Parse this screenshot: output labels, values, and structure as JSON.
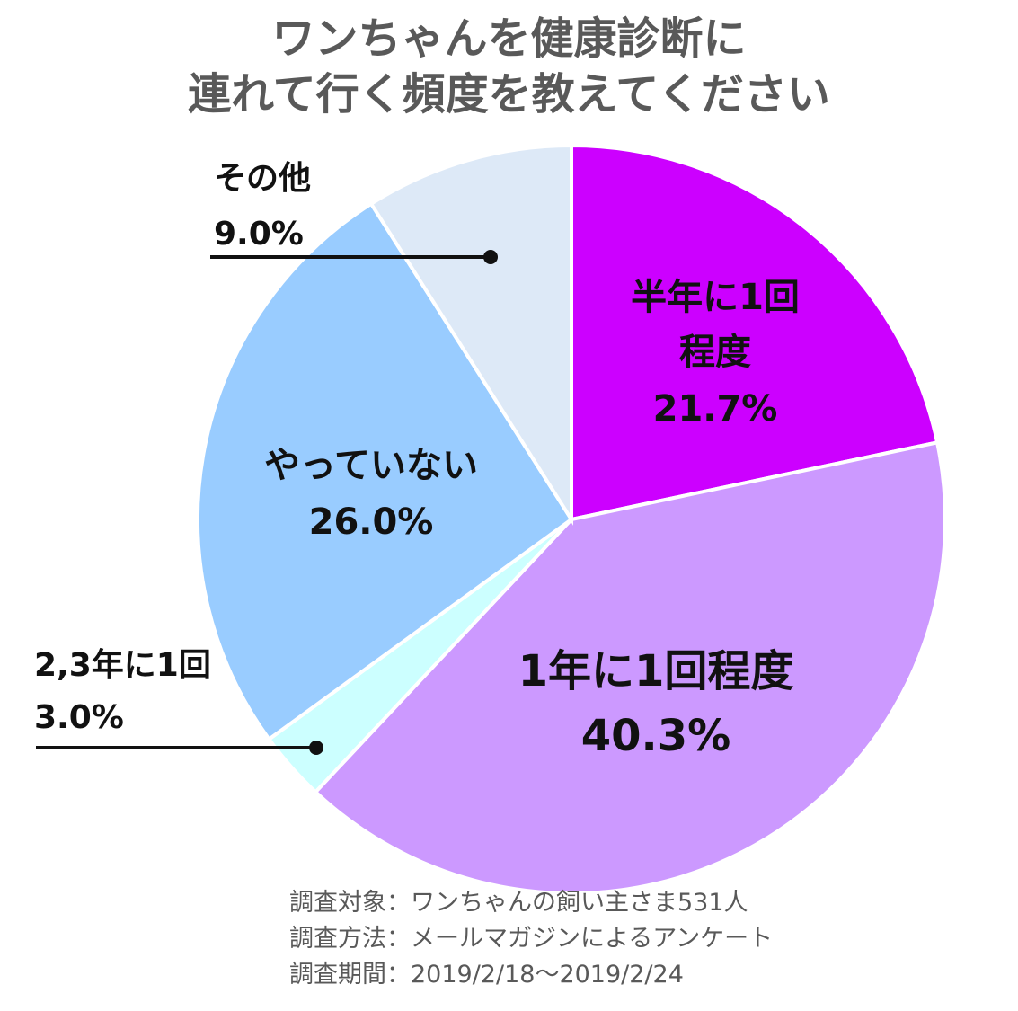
{
  "title": {
    "line1": "ワンちゃんを健康診断に",
    "line2": "連れて行く頻度を教えてください"
  },
  "chart_data": {
    "type": "pie",
    "title": "ワンちゃんを健康診断に連れて行く頻度を教えてください",
    "start": "12 o'clock, clockwise",
    "slices": [
      {
        "label": "半年に1回程度",
        "label_lines": [
          "半年に1回",
          "程度"
        ],
        "value": 21.7,
        "value_text": "21.7%",
        "color": "#cc00ff"
      },
      {
        "label": "1年に1回程度",
        "label_lines": [
          "1年に1回程度"
        ],
        "value": 40.3,
        "value_text": "40.3%",
        "color": "#cc99ff"
      },
      {
        "label": "2,3年に1回",
        "label_lines": [
          "2,3年に1回"
        ],
        "value": 3.0,
        "value_text": "3.0%",
        "color": "#ccffff"
      },
      {
        "label": "やっていない",
        "label_lines": [
          "やっていない"
        ],
        "value": 26.0,
        "value_text": "26.0%",
        "color": "#99ccff"
      },
      {
        "label": "その他",
        "label_lines": [
          "その他"
        ],
        "value": 9.0,
        "value_text": "9.0%",
        "color": "#dde9f7"
      }
    ]
  },
  "footnotes": [
    "調査対象：ワンちゃんの飼い主さま531人",
    "調査方法：メールマガジンによるアンケート",
    "調査期間：2019/2/18～2019/2/24"
  ]
}
